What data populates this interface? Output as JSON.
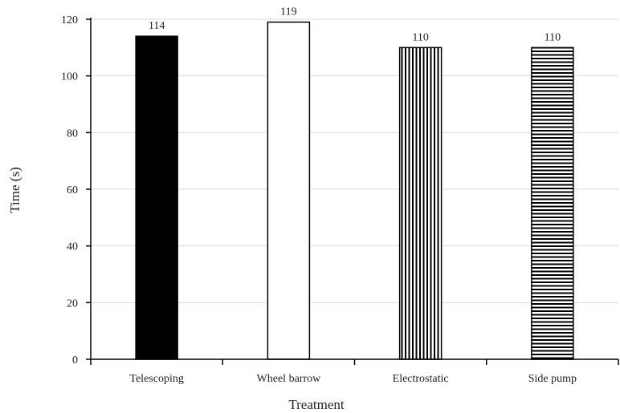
{
  "chart_data": {
    "type": "bar",
    "title": "",
    "xlabel": "Treatment",
    "ylabel": "Time (s)",
    "ylim": [
      0,
      120
    ],
    "yticks": [
      0,
      20,
      40,
      60,
      80,
      100,
      120
    ],
    "grid": "horizontal",
    "categories": [
      "Telescoping",
      "Wheel barrow",
      "Electrostatic",
      "Side pump"
    ],
    "values": [
      114,
      119,
      110,
      110
    ],
    "data_labels": [
      "114",
      "119",
      "110",
      "110"
    ],
    "bar_fills": [
      "solid-black",
      "white",
      "vertical-stripes",
      "horizontal-stripes"
    ]
  }
}
